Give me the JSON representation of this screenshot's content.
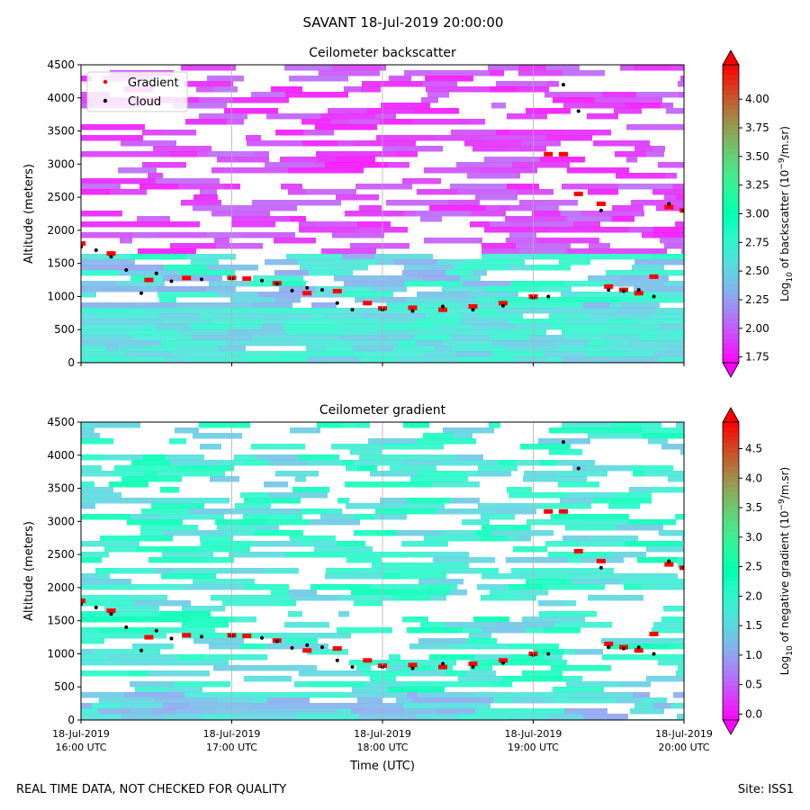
{
  "figure": {
    "suptitle": "SAVANT 18-Jul-2019 20:00:00",
    "footer_left": "REAL TIME DATA, NOT CHECKED FOR QUALITY",
    "footer_right": "Site: ISS1"
  },
  "chart_data": [
    {
      "type": "heatmap",
      "title": "Ceilometer backscatter",
      "ylabel": "Altitude (meters)",
      "ylim": [
        0,
        4500
      ],
      "yticks": [
        0,
        500,
        1000,
        1500,
        2000,
        2500,
        3000,
        3500,
        4000,
        4500
      ],
      "xlim_hours_utc": [
        16.0,
        20.0
      ],
      "x_grid_hours_utc": [
        17.0,
        18.0,
        19.0
      ],
      "colorscale": "rainbow",
      "colorbar": {
        "label": "Log10 of backscatter (10^-9/m.sr)",
        "label_main": "Log",
        "label_sub": "10",
        "label_rest": " of backscatter (10",
        "label_sup": "−9",
        "label_end": "/m.sr)",
        "range": [
          1.7,
          4.3
        ],
        "ticks": [
          "1.75",
          "2.00",
          "2.25",
          "2.50",
          "2.75",
          "3.00",
          "3.25",
          "3.50",
          "3.75",
          "4.00"
        ],
        "extend": "both"
      },
      "legend": {
        "position": "top-left",
        "entries": [
          {
            "name": "Gradient",
            "color": "#ff0000"
          },
          {
            "name": "Cloud",
            "color": "#000000"
          }
        ]
      },
      "series": [
        {
          "name": "Cloud",
          "color": "#000000",
          "hours_utc": [
            16.0,
            16.1,
            16.2,
            16.3,
            16.4,
            16.5,
            16.6,
            16.8,
            17.0,
            17.2,
            17.3,
            17.4,
            17.5,
            17.6,
            17.7,
            17.8,
            18.0,
            18.2,
            18.4,
            18.6,
            18.8,
            19.0,
            19.1,
            19.2,
            19.3,
            19.45,
            19.5,
            19.6,
            19.7,
            19.8,
            19.9,
            20.0
          ],
          "altitude_m": [
            1750,
            1700,
            1600,
            1400,
            1050,
            1350,
            1230,
            1260,
            1270,
            1240,
            1190,
            1090,
            1130,
            1100,
            900,
            800,
            800,
            780,
            850,
            800,
            860,
            980,
            1000,
            4200,
            3800,
            2300,
            1100,
            1080,
            1100,
            1000,
            2400,
            2300
          ]
        },
        {
          "name": "Gradient",
          "color": "#ff0000",
          "hours_utc": [
            16.0,
            16.2,
            16.45,
            16.7,
            17.0,
            17.1,
            17.3,
            17.5,
            17.7,
            17.9,
            18.0,
            18.2,
            18.4,
            18.6,
            18.8,
            19.0,
            19.1,
            19.2,
            19.3,
            19.45,
            19.5,
            19.6,
            19.7,
            19.8,
            19.9,
            20.0
          ],
          "altitude_m": [
            1800,
            1650,
            1250,
            1280,
            1280,
            1270,
            1200,
            1050,
            1080,
            900,
            820,
            830,
            800,
            850,
            900,
            1000,
            3150,
            3150,
            2550,
            2400,
            1150,
            1100,
            1050,
            1300,
            2350,
            2300
          ]
        }
      ]
    },
    {
      "type": "heatmap",
      "title": "Ceilometer gradient",
      "ylabel": "Altitude (meters)",
      "xlabel": "Time (UTC)",
      "ylim": [
        0,
        4500
      ],
      "yticks": [
        0,
        500,
        1000,
        1500,
        2000,
        2500,
        3000,
        3500,
        4000,
        4500
      ],
      "xlim_hours_utc": [
        16.0,
        20.0
      ],
      "xtick_hours_utc": [
        16.0,
        17.0,
        18.0,
        19.0,
        20.0
      ],
      "xtick_labels": [
        {
          "date": "18-Jul-2019",
          "time": "16:00 UTC"
        },
        {
          "date": "18-Jul-2019",
          "time": "17:00 UTC"
        },
        {
          "date": "18-Jul-2019",
          "time": "18:00 UTC"
        },
        {
          "date": "18-Jul-2019",
          "time": "19:00 UTC"
        },
        {
          "date": "18-Jul-2019",
          "time": "20:00 UTC"
        }
      ],
      "colorscale": "rainbow",
      "colorbar": {
        "label": "Log10 of negative gradient (10^-9/m.sr)",
        "label_main": "Log",
        "label_sub": "10",
        "label_rest": " of negative gradient (10",
        "label_sup": "−9",
        "label_end": "/m.sr)",
        "range": [
          -0.1,
          4.95
        ],
        "ticks": [
          "0.0",
          "0.5",
          "1.0",
          "1.5",
          "2.0",
          "2.5",
          "3.0",
          "3.5",
          "4.0",
          "4.5"
        ],
        "extend": "both"
      },
      "series": [
        {
          "name": "Cloud",
          "color": "#000000",
          "hours_utc": [
            16.0,
            16.1,
            16.2,
            16.3,
            16.4,
            16.5,
            16.6,
            16.8,
            17.0,
            17.2,
            17.3,
            17.4,
            17.5,
            17.6,
            17.7,
            17.8,
            18.0,
            18.2,
            18.4,
            18.6,
            18.8,
            19.0,
            19.1,
            19.2,
            19.3,
            19.45,
            19.5,
            19.6,
            19.7,
            19.8,
            19.9,
            20.0
          ],
          "altitude_m": [
            1750,
            1700,
            1600,
            1400,
            1050,
            1350,
            1230,
            1260,
            1270,
            1240,
            1190,
            1090,
            1130,
            1100,
            900,
            800,
            800,
            780,
            850,
            800,
            860,
            980,
            1000,
            4200,
            3800,
            2300,
            1100,
            1080,
            1100,
            1000,
            2400,
            2300
          ]
        },
        {
          "name": "Gradient",
          "color": "#ff0000",
          "hours_utc": [
            16.0,
            16.2,
            16.45,
            16.7,
            17.0,
            17.1,
            17.3,
            17.5,
            17.7,
            17.9,
            18.0,
            18.2,
            18.4,
            18.6,
            18.8,
            19.0,
            19.1,
            19.2,
            19.3,
            19.45,
            19.5,
            19.6,
            19.7,
            19.8,
            19.9,
            20.0
          ],
          "altitude_m": [
            1800,
            1650,
            1250,
            1280,
            1280,
            1270,
            1200,
            1050,
            1080,
            900,
            820,
            830,
            800,
            850,
            900,
            1000,
            3150,
            3150,
            2550,
            2400,
            1150,
            1100,
            1050,
            1300,
            2350,
            2300
          ]
        }
      ]
    }
  ]
}
